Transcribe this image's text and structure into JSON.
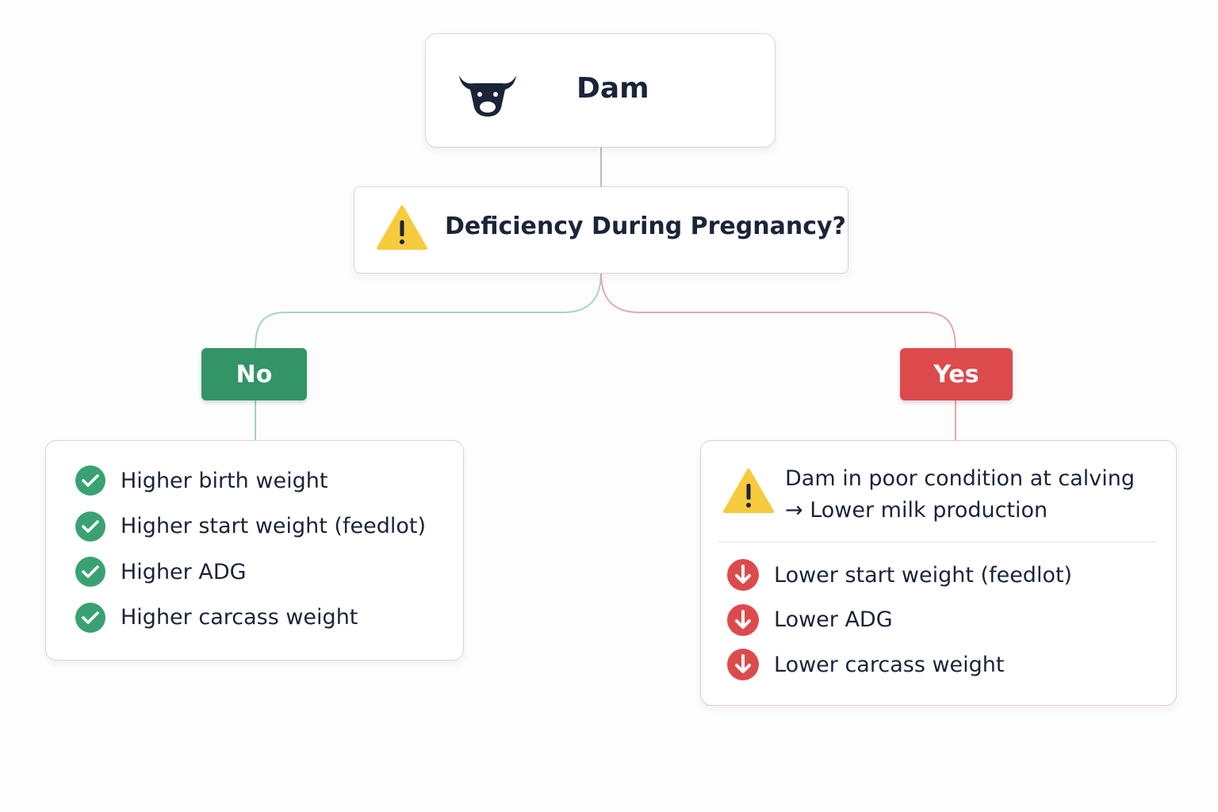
{
  "root": {
    "label": "Dam"
  },
  "question": {
    "label": "Deficiency During Pregnancy?"
  },
  "branches": [
    {
      "label": "No",
      "items": [
        "Higher birth weight",
        "Higher start weight (feedlot)",
        "Higher ADG",
        "Higher carcass weight"
      ]
    },
    {
      "label": "Yes",
      "warning": [
        "Dam in poor condition at calving",
        "→ Lower milk production"
      ],
      "items": [
        "Lower start weight (feedlot)",
        "Lower ADG",
        "Lower carcass weight"
      ]
    }
  ]
}
